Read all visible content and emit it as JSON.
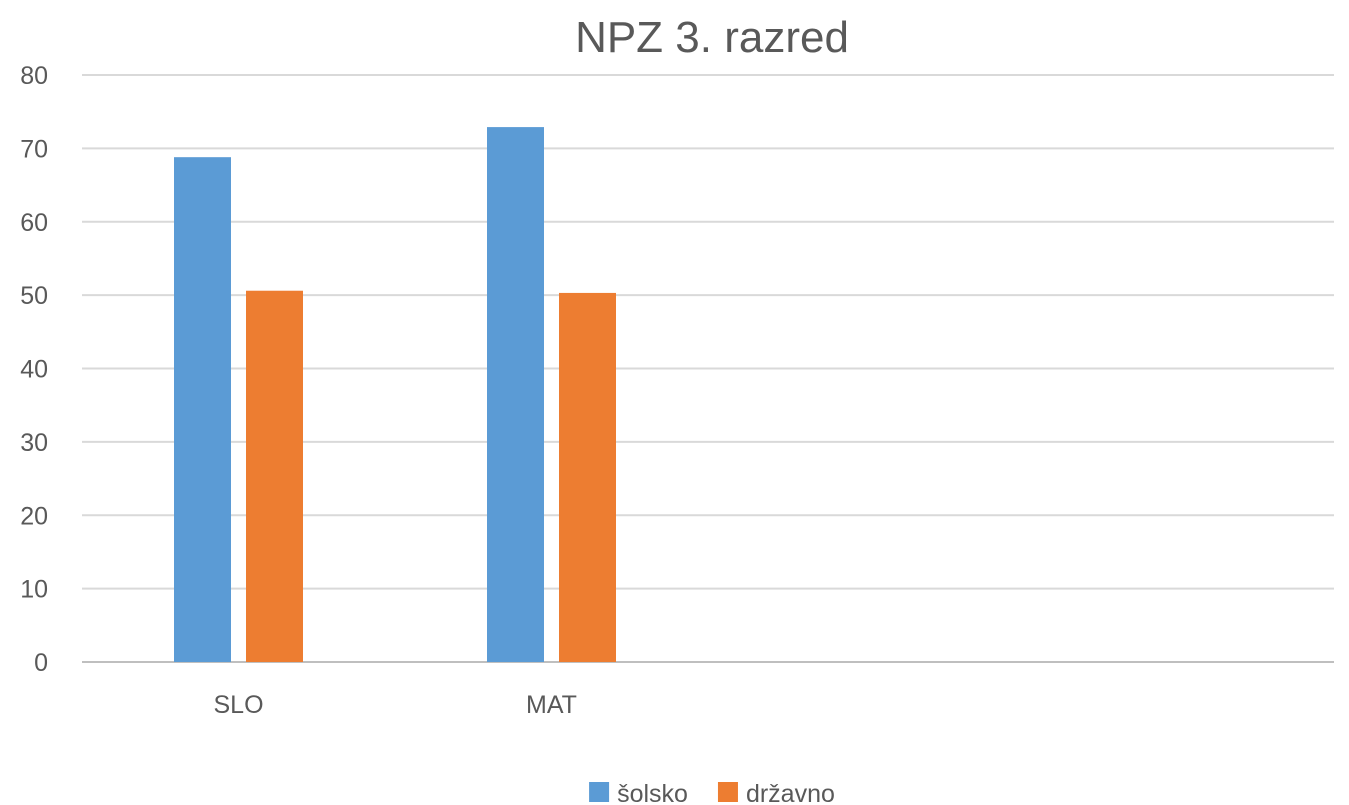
{
  "chart_data": {
    "type": "bar",
    "title": "NPZ 3. razred",
    "categories": [
      "SLO",
      "MAT",
      "",
      ""
    ],
    "series": [
      {
        "name": "šolsko",
        "values": [
          68.8,
          72.9,
          null,
          null
        ],
        "color": "#5B9BD5"
      },
      {
        "name": "državno",
        "values": [
          50.6,
          50.3,
          null,
          null
        ],
        "color": "#ED7D31"
      }
    ],
    "ylim": [
      0,
      80
    ],
    "yticks": [
      0,
      10,
      20,
      30,
      40,
      50,
      60,
      70,
      80
    ],
    "grid": true,
    "legend_position": "bottom",
    "xlabel": "",
    "ylabel": ""
  }
}
